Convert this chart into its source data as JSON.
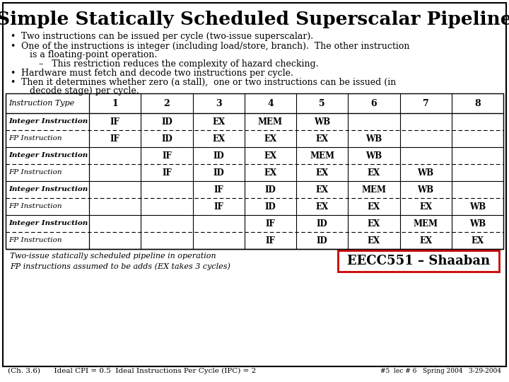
{
  "title": "Simple Statically Scheduled Superscalar Pipeline",
  "table_header": [
    "Instruction Type",
    "1",
    "2",
    "3",
    "4",
    "5",
    "6",
    "7",
    "8"
  ],
  "table_rows": [
    [
      "Integer Instruction",
      "IF",
      "ID",
      "EX",
      "MEM",
      "WB",
      "",
      "",
      ""
    ],
    [
      "FP Instruction",
      "IF",
      "ID",
      "EX",
      "EX",
      "EX",
      "WB",
      "",
      ""
    ],
    [
      "Integer Instruction",
      "",
      "IF",
      "ID",
      "EX",
      "MEM",
      "WB",
      "",
      ""
    ],
    [
      "FP Instruction",
      "",
      "IF",
      "ID",
      "EX",
      "EX",
      "EX",
      "WB",
      ""
    ],
    [
      "Integer Instruction",
      "",
      "",
      "IF",
      "ID",
      "EX",
      "MEM",
      "WB",
      ""
    ],
    [
      "FP Instruction",
      "",
      "",
      "IF",
      "ID",
      "EX",
      "EX",
      "EX",
      "WB"
    ],
    [
      "Integer Instruction",
      "",
      "",
      "",
      "IF",
      "ID",
      "EX",
      "MEM",
      "WB"
    ],
    [
      "FP Instruction",
      "",
      "",
      "",
      "IF",
      "ID",
      "EX",
      "EX",
      "EX"
    ]
  ],
  "footer_left1": "Two-issue statically scheduled pipeline in operation",
  "footer_left2": "FP instructions assumed to be adds (EX takes 3 cycles)",
  "footer_box": "EECC551 – Shaaban",
  "bottom_left": "(Ch. 3.6)      Ideal CPI = 0.5  Ideal Instructions Per Cycle (IPC) = 2",
  "bottom_right": "#5  lec # 6   Spring 2004   3-29-2004",
  "bg_color": "#ffffff",
  "box_color": "#cc0000"
}
